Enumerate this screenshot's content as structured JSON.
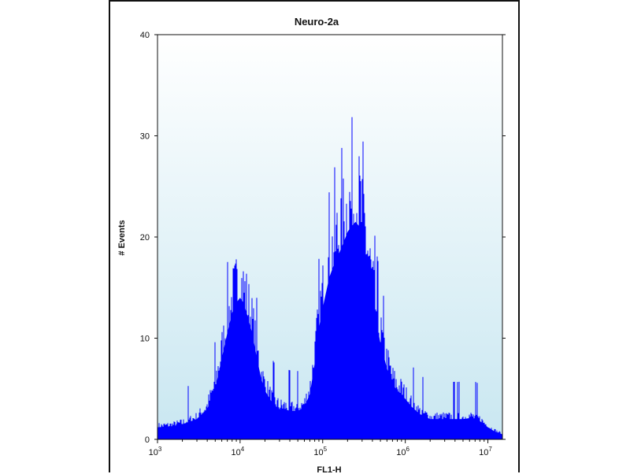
{
  "chart_data": {
    "type": "area",
    "title": "Neuro-2a",
    "xlabel": "FL1-H",
    "ylabel": "# Events",
    "xscale": "log",
    "xlim": [
      1000,
      15000000
    ],
    "ylim": [
      0,
      40
    ],
    "grid": false,
    "colors": {
      "fill": "#0000ff",
      "plot_background_top": "#ffffff",
      "plot_background_bottom": "#c9e7f1",
      "frame": "#111111"
    },
    "x_ticks": [
      {
        "base": "10",
        "exp": "3",
        "value": 1000
      },
      {
        "base": "10",
        "exp": "4",
        "value": 10000
      },
      {
        "base": "10",
        "exp": "5",
        "value": 100000
      },
      {
        "base": "10",
        "exp": "6",
        "value": 1000000
      },
      {
        "base": "10",
        "exp": "7",
        "value": 10000000
      }
    ],
    "y_ticks": [
      "0",
      "10",
      "20",
      "30",
      "40"
    ],
    "series": [
      {
        "x": [
          1000,
          1500,
          2000,
          3000,
          4000,
          5000,
          6000,
          7000,
          8000,
          9000,
          10000,
          11000,
          12000,
          14000,
          16000,
          18000,
          20000,
          25000,
          30000,
          35000,
          40000,
          50000,
          60000,
          70000,
          80000,
          90000,
          100000,
          120000,
          140000,
          160000,
          180000,
          200000,
          220000,
          250000,
          280000,
          300000,
          330000,
          360000,
          400000,
          450000,
          500000,
          600000,
          700000,
          800000,
          900000,
          1000000,
          1200000,
          1500000,
          2000000,
          3000000,
          4000000,
          5000000,
          6000000,
          7000000,
          8000000,
          9000000,
          10000000,
          12000000,
          15000000
        ],
        "y": [
          1.2,
          1.3,
          1.5,
          2.0,
          3.0,
          5.0,
          8.0,
          10.5,
          12.5,
          13.5,
          14.0,
          13.5,
          12.5,
          10.5,
          8.0,
          6.0,
          4.8,
          3.5,
          3.0,
          3.0,
          2.8,
          2.8,
          3.2,
          4.5,
          7.5,
          11.0,
          13.0,
          16.0,
          17.5,
          18.5,
          19.5,
          20.5,
          21.0,
          21.5,
          21.0,
          20.0,
          18.5,
          16.5,
          14.0,
          11.5,
          9.5,
          7.0,
          5.5,
          4.8,
          4.5,
          4.0,
          3.2,
          2.5,
          2.0,
          2.0,
          2.0,
          2.0,
          2.1,
          2.0,
          1.8,
          1.5,
          1.2,
          0.8,
          0.5
        ]
      }
    ]
  }
}
